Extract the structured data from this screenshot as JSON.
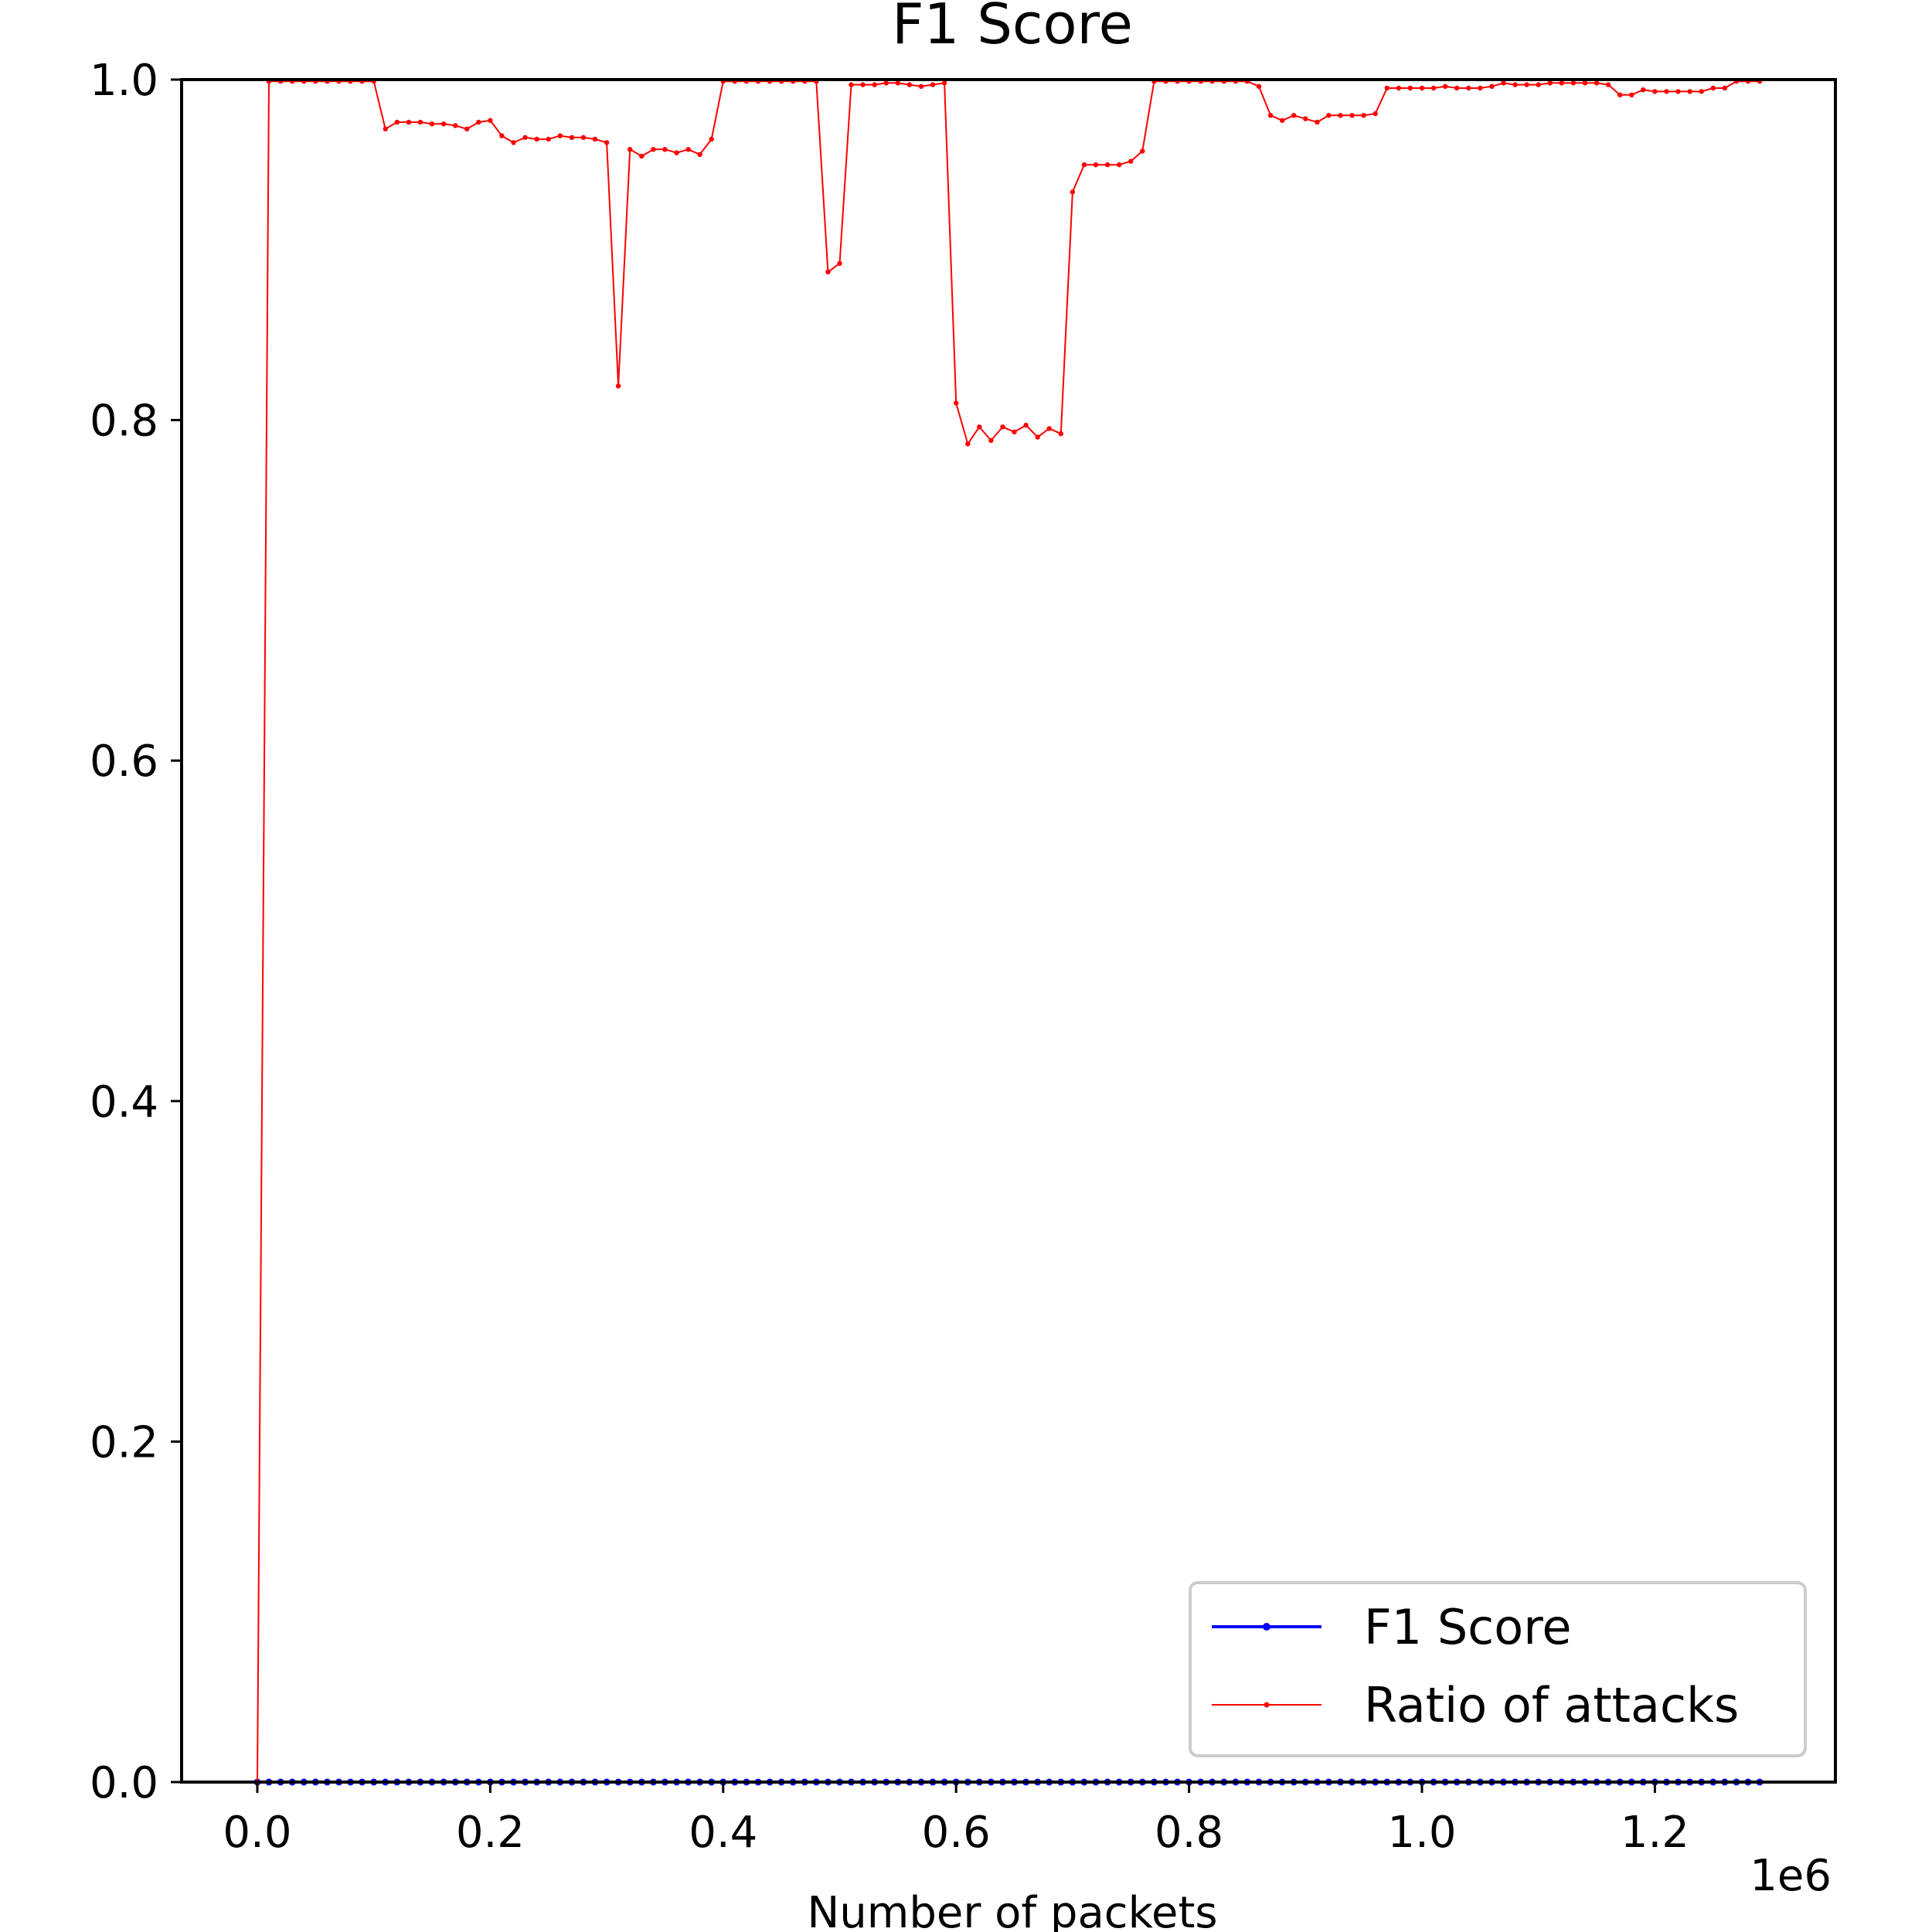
{
  "chart_data": {
    "type": "line",
    "title": "F1 Score",
    "xlabel": "Number of packets",
    "ylabel": "",
    "x_offset_label": "1e6",
    "x_scale": 1000000,
    "xlim": [
      -0.065,
      1.355
    ],
    "ylim": [
      0.0,
      1.0
    ],
    "x_ticks": [
      0.0,
      0.2,
      0.4,
      0.6,
      0.8,
      1.0,
      1.2
    ],
    "x_tick_labels": [
      "0.0",
      "0.2",
      "0.4",
      "0.6",
      "0.8",
      "1.0",
      "1.2"
    ],
    "y_ticks": [
      0.0,
      0.2,
      0.4,
      0.6,
      0.8,
      1.0
    ],
    "y_tick_labels": [
      "0.0",
      "0.2",
      "0.4",
      "0.6",
      "0.8",
      "1.0"
    ],
    "grid": false,
    "legend_position": "lower right",
    "x": [
      0.0,
      0.01,
      0.02,
      0.03,
      0.04,
      0.05,
      0.06,
      0.07,
      0.08,
      0.09,
      0.1,
      0.11,
      0.12,
      0.13,
      0.14,
      0.15,
      0.16,
      0.17,
      0.18,
      0.19,
      0.2,
      0.21,
      0.22,
      0.23,
      0.24,
      0.25,
      0.26,
      0.27,
      0.28,
      0.29,
      0.3,
      0.31,
      0.32,
      0.33,
      0.34,
      0.35,
      0.36,
      0.37,
      0.38,
      0.39,
      0.4,
      0.41,
      0.42,
      0.43,
      0.44,
      0.45,
      0.46,
      0.47,
      0.48,
      0.49,
      0.5,
      0.51,
      0.52,
      0.53,
      0.54,
      0.55,
      0.56,
      0.57,
      0.58,
      0.59,
      0.6,
      0.61,
      0.62,
      0.63,
      0.64,
      0.65,
      0.66,
      0.67,
      0.68,
      0.69,
      0.7,
      0.71,
      0.72,
      0.73,
      0.74,
      0.75,
      0.76,
      0.77,
      0.78,
      0.79,
      0.8,
      0.81,
      0.82,
      0.83,
      0.84,
      0.85,
      0.86,
      0.87,
      0.88,
      0.89,
      0.9,
      0.91,
      0.92,
      0.93,
      0.94,
      0.95,
      0.96,
      0.97,
      0.98,
      0.99,
      1.0,
      1.01,
      1.02,
      1.03,
      1.04,
      1.05,
      1.06,
      1.07,
      1.08,
      1.09,
      1.1,
      1.11,
      1.12,
      1.13,
      1.14,
      1.15,
      1.16,
      1.17,
      1.18,
      1.19,
      1.2,
      1.21,
      1.22,
      1.23,
      1.24,
      1.25,
      1.26,
      1.27,
      1.28,
      1.29
    ],
    "series": [
      {
        "name": "F1 Score",
        "color": "#0000ff",
        "values": [
          0,
          0,
          0,
          0,
          0,
          0,
          0,
          0,
          0,
          0,
          0,
          0,
          0,
          0,
          0,
          0,
          0,
          0,
          0,
          0,
          0,
          0,
          0,
          0,
          0,
          0,
          0,
          0,
          0,
          0,
          0,
          0,
          0,
          0,
          0,
          0,
          0,
          0,
          0,
          0,
          0,
          0,
          0,
          0,
          0,
          0,
          0,
          0,
          0,
          0,
          0,
          0,
          0,
          0,
          0,
          0,
          0,
          0,
          0,
          0,
          0,
          0,
          0,
          0,
          0,
          0,
          0,
          0,
          0,
          0,
          0,
          0,
          0,
          0,
          0,
          0,
          0,
          0,
          0,
          0,
          0,
          0,
          0,
          0,
          0,
          0,
          0,
          0,
          0,
          0,
          0,
          0,
          0,
          0,
          0,
          0,
          0,
          0,
          0,
          0,
          0,
          0,
          0,
          0,
          0,
          0,
          0,
          0,
          0,
          0,
          0,
          0,
          0,
          0,
          0,
          0,
          0,
          0,
          0,
          0,
          0,
          0,
          0,
          0,
          0,
          0,
          0,
          0,
          0,
          0
        ]
      },
      {
        "name": "Ratio of attacks",
        "color": "#ff0000",
        "values": [
          0.0,
          0.999,
          0.999,
          0.999,
          0.999,
          0.999,
          0.999,
          0.999,
          0.999,
          0.999,
          0.999,
          0.971,
          0.975,
          0.975,
          0.975,
          0.974,
          0.974,
          0.973,
          0.971,
          0.975,
          0.976,
          0.967,
          0.963,
          0.966,
          0.965,
          0.965,
          0.967,
          0.966,
          0.966,
          0.965,
          0.963,
          0.82,
          0.959,
          0.955,
          0.959,
          0.959,
          0.957,
          0.959,
          0.956,
          0.965,
          0.999,
          0.999,
          0.999,
          0.999,
          0.999,
          0.999,
          0.999,
          0.999,
          0.999,
          0.887,
          0.892,
          0.997,
          0.997,
          0.997,
          0.998,
          0.998,
          0.997,
          0.996,
          0.997,
          0.998,
          0.81,
          0.786,
          0.796,
          0.788,
          0.796,
          0.793,
          0.797,
          0.79,
          0.795,
          0.792,
          0.934,
          0.95,
          0.95,
          0.95,
          0.95,
          0.952,
          0.958,
          0.999,
          0.999,
          0.999,
          0.999,
          0.999,
          0.999,
          0.999,
          0.999,
          0.999,
          0.996,
          0.979,
          0.976,
          0.979,
          0.977,
          0.975,
          0.979,
          0.979,
          0.979,
          0.979,
          0.98,
          0.995,
          0.995,
          0.995,
          0.995,
          0.995,
          0.996,
          0.995,
          0.995,
          0.995,
          0.996,
          0.998,
          0.997,
          0.997,
          0.997,
          0.998,
          0.998,
          0.998,
          0.998,
          0.998,
          0.997,
          0.991,
          0.991,
          0.994,
          0.993,
          0.993,
          0.993,
          0.993,
          0.993,
          0.995,
          0.995,
          0.999,
          0.999,
          0.999
        ]
      }
    ]
  }
}
